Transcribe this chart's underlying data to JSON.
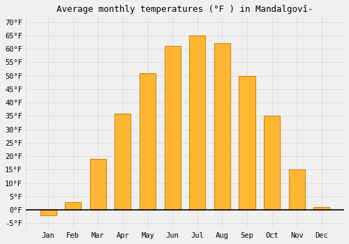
{
  "title": "Average monthly temperatures (°F ) in Mandalgovĭ-",
  "months": [
    "Jan",
    "Feb",
    "Mar",
    "Apr",
    "May",
    "Jun",
    "Jul",
    "Aug",
    "Sep",
    "Oct",
    "Nov",
    "Dec"
  ],
  "values": [
    -2,
    3,
    19,
    36,
    51,
    61,
    65,
    62,
    50,
    35,
    15,
    1
  ],
  "bar_color": "#FFB733",
  "bar_edgecolor": "#CC8800",
  "ylim": [
    -7,
    72
  ],
  "yticks": [
    -5,
    0,
    5,
    10,
    15,
    20,
    25,
    30,
    35,
    40,
    45,
    50,
    55,
    60,
    65,
    70
  ],
  "background_color": "#f0f0f0",
  "grid_color": "#d8d8d8",
  "title_fontsize": 9,
  "tick_fontsize": 7.5,
  "zero_line_color": "#000000",
  "bar_width": 0.65,
  "figsize": [
    5.0,
    3.5
  ],
  "dpi": 100
}
